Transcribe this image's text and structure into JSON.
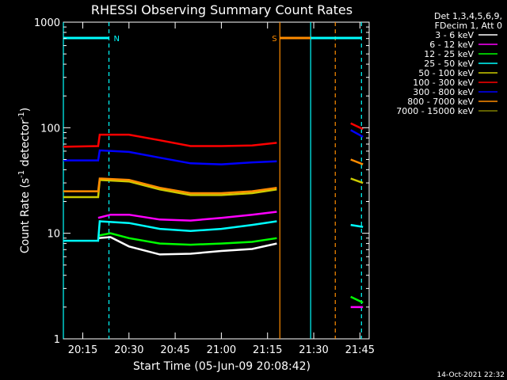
{
  "chart_data": {
    "type": "line",
    "title": "RHESSI Observing Summary Count Rates",
    "xlabel": "Start Time (05-Jun-09 20:08:42)",
    "ylabel": "Count Rate (s",
    "ylabel_sup1": "-1",
    "ylabel_mid": " detector",
    "ylabel_sup2": "-1",
    "ylabel_end": ")",
    "ylim": [
      1,
      1000
    ],
    "xlim": [
      "20:08:42",
      "21:48:00"
    ],
    "yscale": "log",
    "grid": false,
    "legend_placement": "right",
    "legend_header": [
      "Det 1,3,4,5,6,9,",
      "FDecim 1, Att 0"
    ],
    "x_ticks": [
      "20:15",
      "20:30",
      "20:45",
      "21:00",
      "21:15",
      "21:30",
      "21:45"
    ],
    "y_ticks": [
      "1",
      "10",
      "100",
      "1000"
    ],
    "footer": "14-Oct-2021 22:32",
    "flags": [
      {
        "label": "N",
        "color": "#00ffff",
        "start": "20:08:42",
        "end": "20:23:30",
        "marker_time": "20:23:30"
      },
      {
        "label": "S",
        "color": "#ff8c00",
        "start": "21:19:00",
        "end": "21:37:00",
        "marker_time": "21:37:00"
      },
      {
        "label": "",
        "color": "#00ffff",
        "start": "21:29:00",
        "end": "21:45:30",
        "marker_time": "21:45:30"
      }
    ],
    "vertical_lines": [
      {
        "time": "20:08:42",
        "color": "#00ffff",
        "style": "solid"
      },
      {
        "time": "20:23:30",
        "color": "#00ffff",
        "style": "dashed"
      },
      {
        "time": "21:19:00",
        "color": "#ff8c00",
        "style": "solid"
      },
      {
        "time": "21:29:00",
        "color": "#00ffff",
        "style": "solid"
      },
      {
        "time": "21:37:00",
        "color": "#ff8c00",
        "style": "dashed"
      },
      {
        "time": "21:45:30",
        "color": "#00ffff",
        "style": "dashed"
      }
    ],
    "series": [
      {
        "name": "3 - 6 keV",
        "color": "#ffffff",
        "points": [
          [
            "20:20",
            9
          ],
          [
            "20:24",
            9.2
          ],
          [
            "20:30",
            7.5
          ],
          [
            "20:40",
            6.3
          ],
          [
            "20:50",
            6.4
          ],
          [
            "21:00",
            6.8
          ],
          [
            "21:10",
            7.1
          ],
          [
            "21:18",
            8
          ]
        ]
      },
      {
        "name": "6 - 12 keV",
        "color": "#ff00ff",
        "points": [
          [
            "20:20",
            14
          ],
          [
            "20:24",
            15
          ],
          [
            "20:30",
            15
          ],
          [
            "20:40",
            13.5
          ],
          [
            "20:50",
            13.2
          ],
          [
            "21:00",
            14
          ],
          [
            "21:10",
            15
          ],
          [
            "21:18",
            16
          ],
          [
            "21:42",
            2
          ],
          [
            "21:46",
            2
          ]
        ]
      },
      {
        "name": "12 - 25 keV",
        "color": "#00ff00",
        "points": [
          [
            "20:20",
            9.5
          ],
          [
            "20:24",
            10
          ],
          [
            "20:30",
            9
          ],
          [
            "20:40",
            8
          ],
          [
            "20:50",
            7.8
          ],
          [
            "21:00",
            8
          ],
          [
            "21:10",
            8.3
          ],
          [
            "21:18",
            9
          ],
          [
            "21:42",
            2.5
          ],
          [
            "21:46",
            2.2
          ]
        ]
      },
      {
        "name": "25 - 50 keV",
        "color": "#00ffff",
        "points": [
          [
            "20:08:42",
            8.5
          ],
          [
            "20:20",
            8.5
          ],
          [
            "20:20:30",
            13
          ],
          [
            "20:30",
            12.5
          ],
          [
            "20:40",
            11
          ],
          [
            "20:50",
            10.5
          ],
          [
            "21:00",
            11
          ],
          [
            "21:10",
            12
          ],
          [
            "21:18",
            13
          ],
          [
            "21:42",
            12
          ],
          [
            "21:46",
            11.5
          ]
        ]
      },
      {
        "name": "50 - 100 keV",
        "color": "#cccc00",
        "points": [
          [
            "20:08:42",
            22
          ],
          [
            "20:20",
            22
          ],
          [
            "20:20:30",
            32
          ],
          [
            "20:30",
            31
          ],
          [
            "20:40",
            26
          ],
          [
            "20:50",
            23
          ],
          [
            "21:00",
            23
          ],
          [
            "21:10",
            24
          ],
          [
            "21:18",
            26
          ],
          [
            "21:42",
            33
          ],
          [
            "21:46",
            30
          ]
        ]
      },
      {
        "name": "100 - 300 keV",
        "color": "#ff0000",
        "points": [
          [
            "20:08:42",
            66
          ],
          [
            "20:20",
            67
          ],
          [
            "20:20:30",
            86
          ],
          [
            "20:30",
            86
          ],
          [
            "20:40",
            76
          ],
          [
            "20:50",
            67
          ],
          [
            "21:00",
            67
          ],
          [
            "21:10",
            68
          ],
          [
            "21:18",
            72
          ],
          [
            "21:42",
            110
          ],
          [
            "21:46",
            97
          ]
        ]
      },
      {
        "name": "300 - 800 keV",
        "color": "#0000ff",
        "points": [
          [
            "20:08:42",
            49
          ],
          [
            "20:20",
            49
          ],
          [
            "20:20:30",
            61
          ],
          [
            "20:30",
            59
          ],
          [
            "20:40",
            52
          ],
          [
            "20:50",
            46
          ],
          [
            "21:00",
            45
          ],
          [
            "21:10",
            47
          ],
          [
            "21:18",
            48
          ],
          [
            "21:42",
            95
          ],
          [
            "21:46",
            82
          ]
        ]
      },
      {
        "name": "800 - 7000 keV",
        "color": "#ff8c00",
        "points": [
          [
            "20:08:42",
            25
          ],
          [
            "20:20",
            25
          ],
          [
            "20:20:30",
            33
          ],
          [
            "20:30",
            32
          ],
          [
            "20:40",
            27
          ],
          [
            "20:50",
            24
          ],
          [
            "21:00",
            24
          ],
          [
            "21:10",
            25
          ],
          [
            "21:18",
            27
          ],
          [
            "21:42",
            50
          ],
          [
            "21:46",
            45
          ]
        ]
      },
      {
        "name": "7000 - 15000 keV",
        "color": "#808000",
        "points": []
      }
    ]
  }
}
